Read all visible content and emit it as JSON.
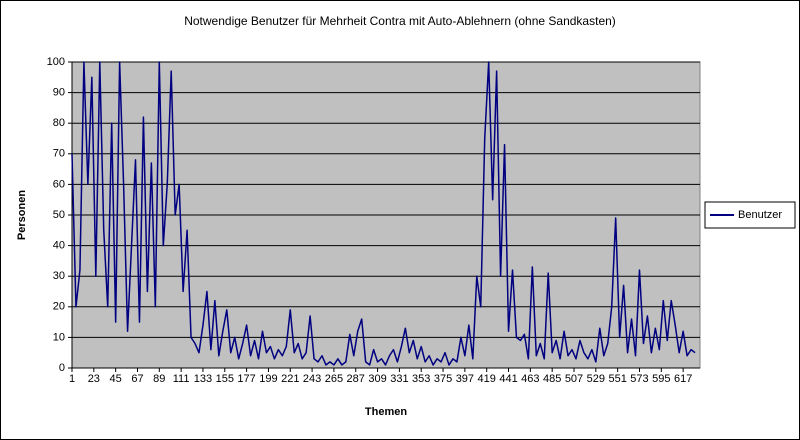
{
  "chart_data": {
    "type": "line",
    "title": "Notwendige Benutzer für Mehrheit Contra mit Auto-Ablehnern (ohne Sandkasten)",
    "xlabel": "Themen",
    "ylabel": "Personen",
    "xlim": [
      1,
      634
    ],
    "ylim": [
      0,
      100
    ],
    "xticks": [
      1,
      23,
      45,
      67,
      89,
      111,
      133,
      155,
      177,
      199,
      221,
      243,
      265,
      287,
      309,
      331,
      353,
      375,
      397,
      419,
      441,
      463,
      485,
      507,
      529,
      551,
      573,
      595,
      617
    ],
    "yticks": [
      0,
      10,
      20,
      30,
      40,
      50,
      60,
      70,
      80,
      90,
      100
    ],
    "grid": true,
    "legend": "right",
    "x": [
      1,
      5,
      9,
      13,
      17,
      21,
      25,
      29,
      33,
      37,
      41,
      45,
      49,
      53,
      57,
      61,
      65,
      69,
      73,
      77,
      81,
      85,
      89,
      93,
      97,
      101,
      105,
      109,
      113,
      117,
      121,
      125,
      129,
      133,
      137,
      141,
      145,
      149,
      153,
      157,
      161,
      165,
      169,
      173,
      177,
      181,
      185,
      189,
      193,
      197,
      201,
      205,
      209,
      213,
      217,
      221,
      225,
      229,
      233,
      237,
      241,
      245,
      249,
      253,
      257,
      261,
      265,
      269,
      273,
      277,
      281,
      285,
      289,
      293,
      297,
      301,
      305,
      309,
      313,
      317,
      321,
      325,
      329,
      333,
      337,
      341,
      345,
      349,
      353,
      357,
      361,
      365,
      369,
      373,
      377,
      381,
      385,
      389,
      393,
      397,
      401,
      405,
      409,
      413,
      417,
      421,
      425,
      429,
      433,
      437,
      441,
      445,
      449,
      453,
      457,
      461,
      465,
      469,
      473,
      477,
      481,
      485,
      489,
      493,
      497,
      501,
      505,
      509,
      513,
      517,
      521,
      525,
      529,
      533,
      537,
      541,
      545,
      549,
      553,
      557,
      561,
      565,
      569,
      573,
      577,
      581,
      585,
      589,
      593,
      597,
      601,
      605,
      609,
      613,
      617,
      621,
      625,
      629
    ],
    "series": [
      {
        "name": "Benutzer",
        "color": "#000080",
        "values": [
          70,
          20,
          32,
          100,
          60,
          95,
          30,
          100,
          45,
          20,
          80,
          15,
          100,
          60,
          12,
          40,
          68,
          15,
          82,
          25,
          67,
          20,
          100,
          40,
          60,
          97,
          50,
          60,
          25,
          45,
          10,
          8,
          5,
          14,
          25,
          6,
          22,
          4,
          12,
          19,
          5,
          10,
          3,
          8,
          14,
          4,
          9,
          3,
          12,
          5,
          7,
          3,
          6,
          4,
          7,
          19,
          5,
          8,
          3,
          5,
          17,
          3,
          2,
          4,
          1,
          2,
          1,
          3,
          1,
          2,
          11,
          4,
          12,
          16,
          2,
          1,
          6,
          2,
          3,
          1,
          4,
          6,
          2,
          7,
          13,
          5,
          9,
          3,
          7,
          2,
          4,
          1,
          3,
          2,
          5,
          1,
          3,
          2,
          10,
          4,
          14,
          3,
          30,
          20,
          75,
          100,
          55,
          97,
          30,
          73,
          12,
          32,
          10,
          9,
          11,
          3,
          33,
          4,
          8,
          3,
          31,
          5,
          9,
          3,
          12,
          4,
          6,
          3,
          9,
          5,
          3,
          6,
          2,
          13,
          4,
          8,
          20,
          49,
          10,
          27,
          5,
          16,
          4,
          32,
          8,
          17,
          5,
          13,
          6,
          22,
          9,
          22,
          14,
          5,
          12,
          4,
          6,
          5
        ]
      }
    ]
  }
}
